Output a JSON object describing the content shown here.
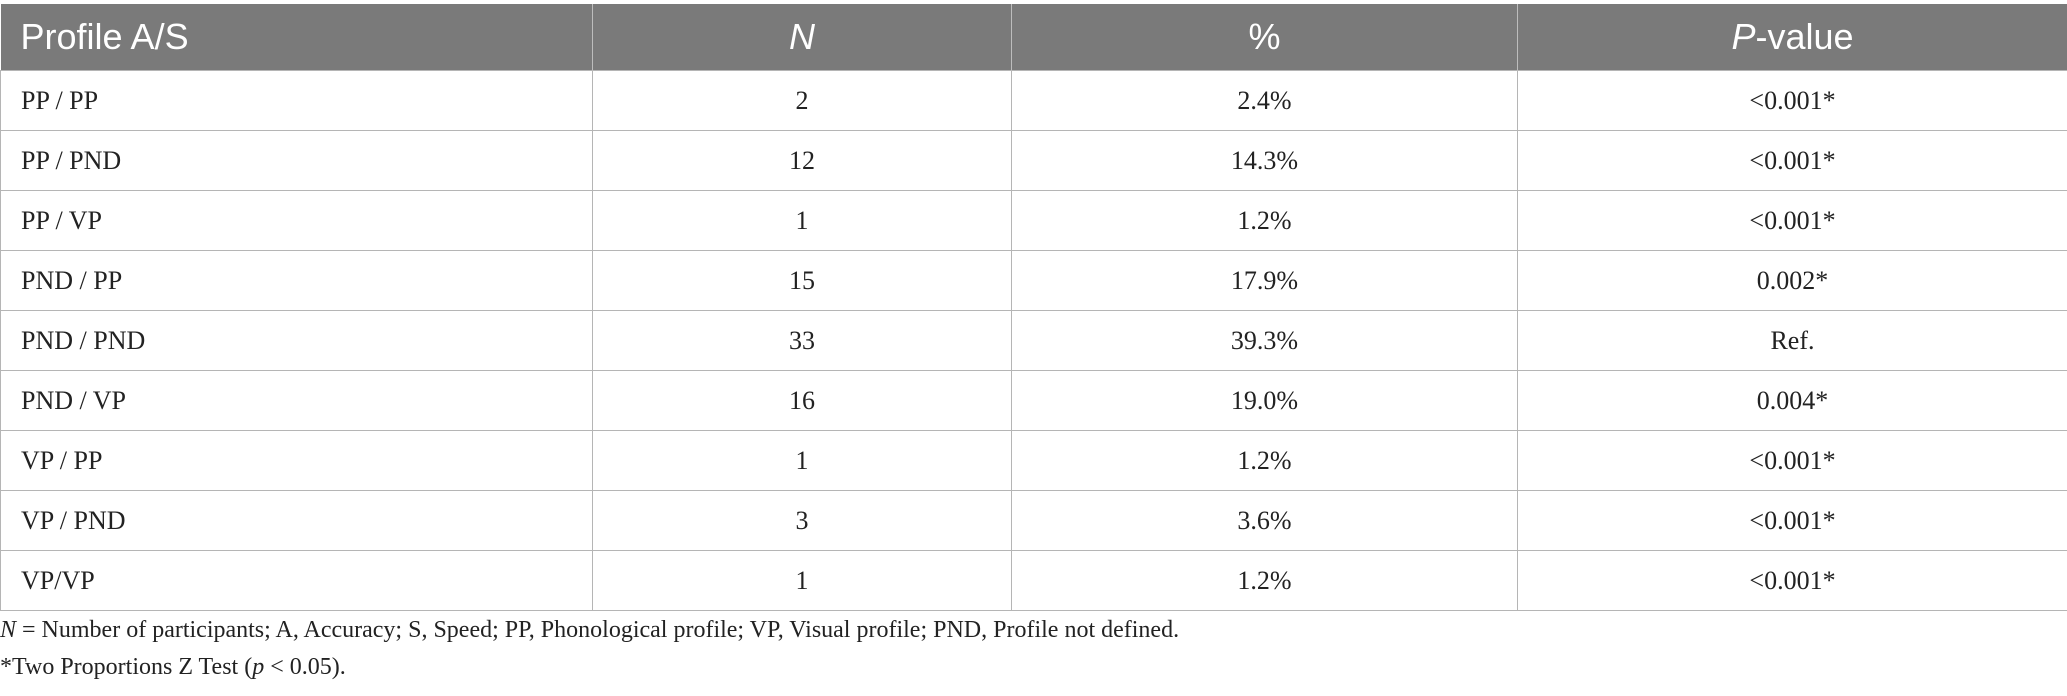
{
  "table": {
    "header": {
      "col1": "Profile A/S",
      "col2": "N",
      "col3": "%",
      "col4_italic": "P",
      "col4_rest": "-value"
    },
    "rows": [
      {
        "profile": "PP / PP",
        "n": "2",
        "pct": "2.4%",
        "p": "<0.001*"
      },
      {
        "profile": "PP / PND",
        "n": "12",
        "pct": "14.3%",
        "p": "<0.001*"
      },
      {
        "profile": "PP / VP",
        "n": "1",
        "pct": "1.2%",
        "p": "<0.001*"
      },
      {
        "profile": "PND / PP",
        "n": "15",
        "pct": "17.9%",
        "p": "0.002*"
      },
      {
        "profile": "PND / PND",
        "n": "33",
        "pct": "39.3%",
        "p": "Ref."
      },
      {
        "profile": "PND / VP",
        "n": "16",
        "pct": "19.0%",
        "p": "0.004*"
      },
      {
        "profile": "VP / PP",
        "n": "1",
        "pct": "1.2%",
        "p": "<0.001*"
      },
      {
        "profile": "VP / PND",
        "n": "3",
        "pct": "3.6%",
        "p": "<0.001*"
      },
      {
        "profile": "VP/VP",
        "n": "1",
        "pct": "1.2%",
        "p": "<0.001*"
      }
    ]
  },
  "notes": {
    "line1_italic": "N",
    "line1_rest": " = Number of participants; A, Accuracy; S, Speed; PP, Phonological profile; VP, Visual profile; PND, Profile not defined.",
    "line2_prefix": "*Two Proportions Z Test (",
    "line2_italic": "p",
    "line2_suffix": " < 0.05)."
  },
  "colors": {
    "header_bg": "#7a7a7a",
    "header_text": "#ffffff",
    "grid": "#b5b5b5"
  }
}
